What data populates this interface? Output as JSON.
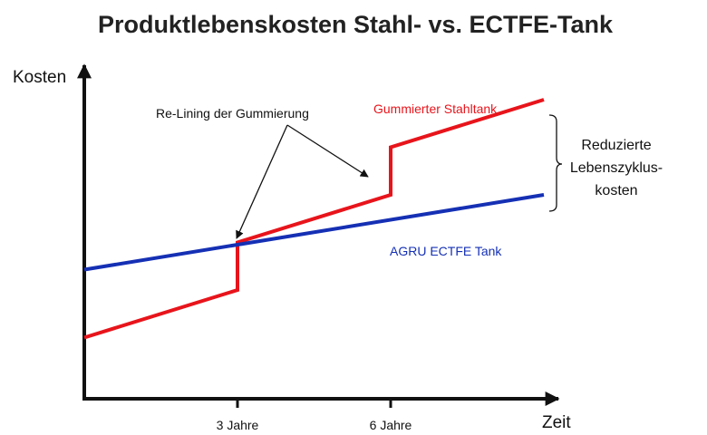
{
  "chart_data": {
    "type": "line",
    "title": "Produktlebenskosten Stahl- vs. ECTFE-Tank",
    "xlabel": "Zeit",
    "ylabel": "Kosten",
    "xlim": [
      0,
      9
    ],
    "ylim": [
      0,
      100
    ],
    "x_ticks": [
      {
        "x": 3,
        "label": "3 Jahre"
      },
      {
        "x": 6,
        "label": "6 Jahre"
      }
    ],
    "grid": false,
    "series": [
      {
        "name": "Gummierter Stahltank",
        "color": "#e8141b",
        "points": [
          [
            0,
            18
          ],
          [
            3,
            32
          ],
          [
            3,
            46
          ],
          [
            6,
            60
          ],
          [
            6,
            74
          ],
          [
            9,
            88
          ]
        ]
      },
      {
        "name": "AGRU ECTFE Tank",
        "color": "#1530b4",
        "points": [
          [
            0,
            38
          ],
          [
            9,
            60
          ]
        ]
      }
    ],
    "annotations": {
      "relining": "Re-Lining der Gummierung",
      "brace_lines": [
        "Reduzierte",
        "Lebenszyklus-",
        "kosten"
      ]
    }
  }
}
